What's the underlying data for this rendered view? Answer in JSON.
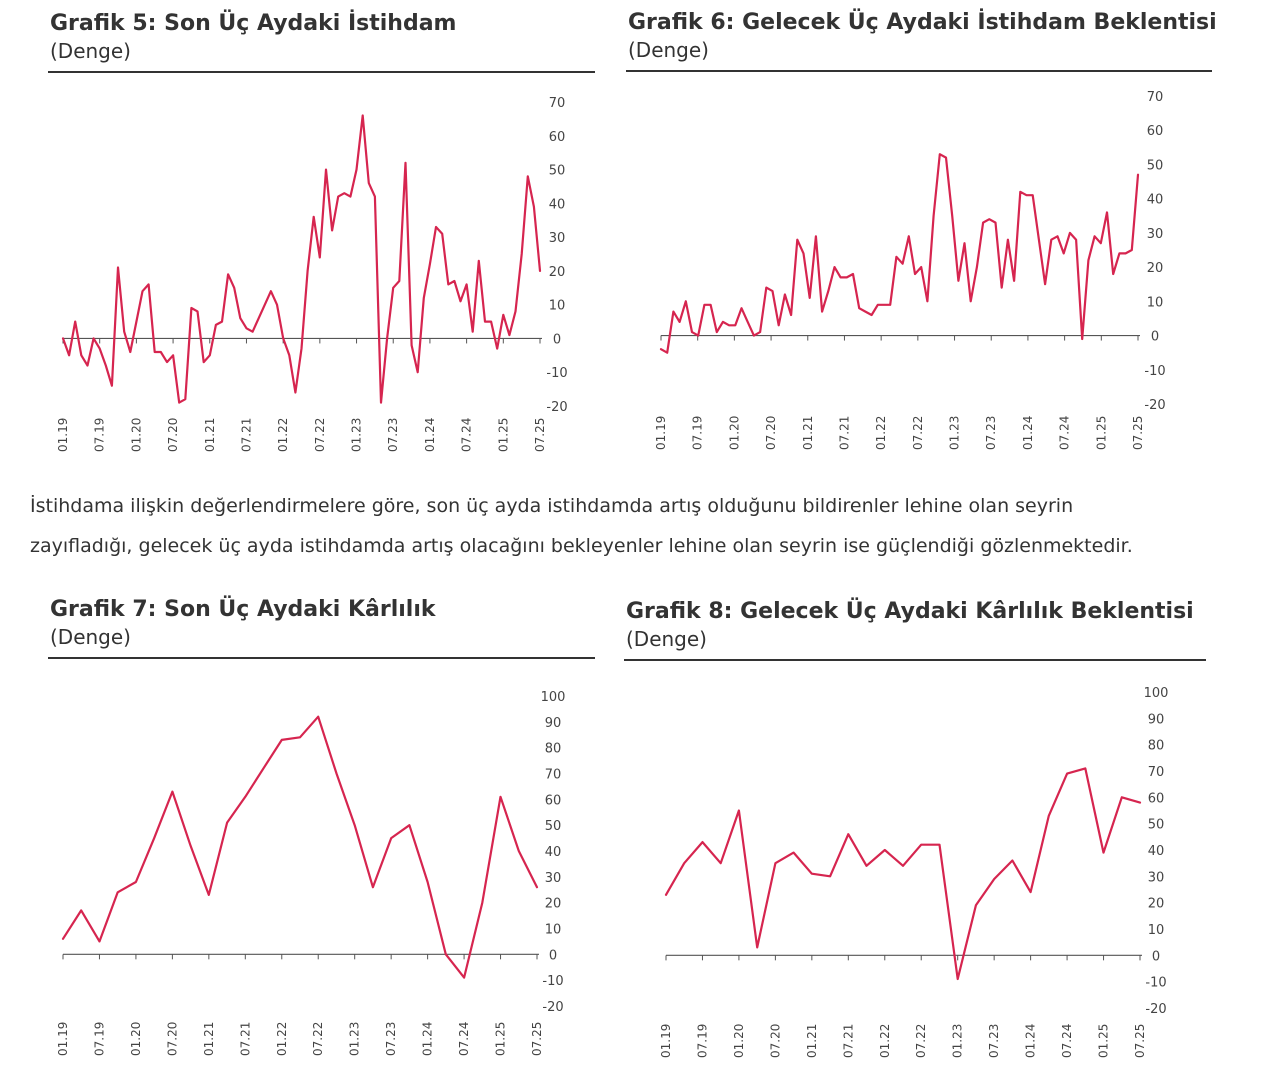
{
  "colors": {
    "line": "#d6254f",
    "axis": "#555555",
    "text": "#333333"
  },
  "paragraph": {
    "line1": "İstihdama ilişkin değerlendirmelere göre, son üç ayda istihdamda artış olduğunu bildirenler lehine olan seyrin",
    "line2": "zayıfladığı, gelecek üç ayda istihdamda artış olacağını bekleyenler lehine olan seyrin ise güçlendiği gözlenmektedir."
  },
  "chart_data": [
    {
      "type": "line",
      "title": "Grafik 5: Son Üç Aydaki İstihdam",
      "subtitle": "(Denge)",
      "ylim": [
        -20,
        70
      ],
      "yticks": [
        70,
        60,
        50,
        40,
        30,
        20,
        10,
        0,
        -10,
        -20
      ],
      "xticks": [
        "01.19",
        "07.19",
        "01.20",
        "07.20",
        "01.21",
        "07.21",
        "01.22",
        "07.22",
        "01.23",
        "07.23",
        "01.24",
        "07.24",
        "01.25",
        "07.25"
      ],
      "series": [
        {
          "values": [
            0,
            -5,
            5,
            -5,
            -8,
            0,
            -3,
            -8,
            -14,
            21,
            2,
            -4,
            5,
            14,
            16,
            -4,
            -4,
            -7,
            -5,
            -19,
            -18,
            9,
            8,
            -7,
            -5,
            4,
            5,
            19,
            15,
            6,
            3,
            2,
            6,
            10,
            14,
            10,
            0,
            -5,
            -16,
            -3,
            20,
            36,
            24,
            50,
            32,
            42,
            43,
            42,
            50,
            66,
            46,
            42,
            -19,
            0,
            15,
            17,
            52,
            -2,
            -10,
            12,
            22,
            33,
            31,
            16,
            17,
            11,
            16,
            2,
            23,
            5,
            5,
            -3,
            7,
            1,
            8,
            25,
            48,
            39,
            20
          ]
        }
      ],
      "grid": false
    },
    {
      "type": "line",
      "title": "Grafik 6: Gelecek Üç Aydaki İstihdam Beklentisi",
      "subtitle": "(Denge)",
      "ylim": [
        -20,
        70
      ],
      "yticks": [
        70,
        60,
        50,
        40,
        30,
        20,
        10,
        0,
        -10,
        -20
      ],
      "xticks": [
        "01.19",
        "07.19",
        "01.20",
        "07.20",
        "01.21",
        "07.21",
        "01.22",
        "07.22",
        "01.23",
        "07.23",
        "01.24",
        "07.24",
        "01.25",
        "07.25"
      ],
      "series": [
        {
          "values": [
            -4,
            -5,
            7,
            4,
            10,
            1,
            0,
            9,
            9,
            1,
            4,
            3,
            3,
            8,
            4,
            0,
            1,
            14,
            13,
            3,
            12,
            6,
            28,
            24,
            11,
            29,
            7,
            13,
            20,
            17,
            17,
            18,
            8,
            7,
            6,
            9,
            9,
            9,
            23,
            21,
            29,
            18,
            20,
            10,
            35,
            53,
            52,
            35,
            16,
            27,
            10,
            20,
            33,
            34,
            33,
            14,
            28,
            16,
            42,
            41,
            41,
            28,
            15,
            28,
            29,
            24,
            30,
            28,
            -1,
            22,
            29,
            27,
            36,
            18,
            24,
            24,
            25,
            47
          ]
        }
      ],
      "grid": false
    },
    {
      "type": "line",
      "title": "Grafik 7: Son Üç Aydaki Kârlılık",
      "subtitle": "(Denge)",
      "ylim": [
        -20,
        100
      ],
      "yticks": [
        100,
        90,
        80,
        70,
        60,
        50,
        40,
        30,
        20,
        10,
        0,
        -10,
        -20
      ],
      "xticks": [
        "01.19",
        "07.19",
        "01.20",
        "07.20",
        "01.21",
        "07.21",
        "01.22",
        "07.22",
        "01.23",
        "07.23",
        "01.24",
        "07.24",
        "01.25",
        "07.25"
      ],
      "series": [
        {
          "values": [
            6,
            17,
            5,
            24,
            28,
            45,
            63,
            42,
            23,
            51,
            61,
            72,
            83,
            84,
            92,
            70,
            50,
            26,
            45,
            50,
            28,
            0,
            -9,
            20,
            61,
            40,
            26
          ]
        }
      ],
      "grid": false
    },
    {
      "type": "line",
      "title": "Grafik 8: Gelecek Üç Aydaki Kârlılık Beklentisi",
      "subtitle": "(Denge)",
      "ylim": [
        -20,
        100
      ],
      "yticks": [
        100,
        90,
        80,
        70,
        60,
        50,
        40,
        30,
        20,
        10,
        0,
        -10,
        -20
      ],
      "xticks": [
        "01.19",
        "07.19",
        "01.20",
        "07.20",
        "01.21",
        "07.21",
        "01.22",
        "07.22",
        "01.23",
        "07.23",
        "01.24",
        "07.24",
        "01.25",
        "07.25"
      ],
      "series": [
        {
          "values": [
            23,
            35,
            43,
            35,
            55,
            3,
            35,
            39,
            31,
            30,
            46,
            34,
            40,
            34,
            42,
            42,
            -9,
            19,
            29,
            36,
            24,
            53,
            69,
            71,
            39,
            60,
            58
          ]
        }
      ],
      "grid": false
    }
  ]
}
